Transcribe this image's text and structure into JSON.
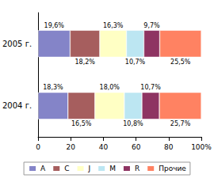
{
  "chart_data": {
    "type": "bar",
    "orientation": "horizontal",
    "stacked": true,
    "data_labels": true,
    "grid": false,
    "legend": "bottom",
    "categories": [
      "2005 г.",
      "2004 г."
    ],
    "xlim": [
      0,
      100
    ],
    "xticks": [
      0,
      20,
      40,
      60,
      80,
      {
        "value": 100,
        "label": "100%"
      }
    ],
    "series": [
      {
        "name": "A",
        "color": "#8484c8",
        "values": [
          19.6,
          18.3
        ],
        "value_labels": [
          "19,6%",
          "18,3%"
        ]
      },
      {
        "name": "C",
        "color": "#a65e5e",
        "values": [
          18.2,
          16.5
        ],
        "value_labels": [
          "18,2%",
          "16,5%"
        ]
      },
      {
        "name": "J",
        "color": "#ffffc4",
        "values": [
          16.3,
          18.0
        ],
        "value_labels": [
          "16,3%",
          "18,0%"
        ]
      },
      {
        "name": "M",
        "color": "#bce6f2",
        "values": [
          10.7,
          10.8
        ],
        "value_labels": [
          "10,7%",
          "10,8%"
        ]
      },
      {
        "name": "R",
        "color": "#8e3462",
        "values": [
          9.7,
          10.7
        ],
        "value_labels": [
          "9,7%",
          "10,7%"
        ]
      },
      {
        "name": "Прочие",
        "color": "#ff8262",
        "values": [
          25.5,
          25.7
        ],
        "value_labels": [
          "25,5%",
          "25,7%"
        ]
      }
    ]
  }
}
